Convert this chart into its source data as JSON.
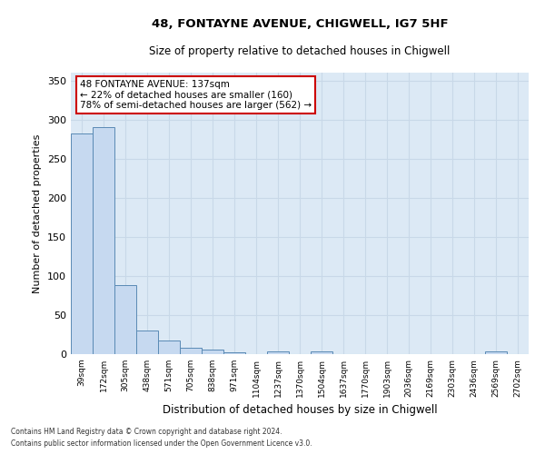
{
  "title1": "48, FONTAYNE AVENUE, CHIGWELL, IG7 5HF",
  "title2": "Size of property relative to detached houses in Chigwell",
  "xlabel": "Distribution of detached houses by size in Chigwell",
  "ylabel": "Number of detached properties",
  "categories": [
    "39sqm",
    "172sqm",
    "305sqm",
    "438sqm",
    "571sqm",
    "705sqm",
    "838sqm",
    "971sqm",
    "1104sqm",
    "1237sqm",
    "1370sqm",
    "1504sqm",
    "1637sqm",
    "1770sqm",
    "1903sqm",
    "2036sqm",
    "2169sqm",
    "2303sqm",
    "2436sqm",
    "2569sqm",
    "2702sqm"
  ],
  "values": [
    282,
    290,
    88,
    30,
    17,
    8,
    6,
    2,
    0,
    4,
    0,
    4,
    0,
    0,
    0,
    0,
    0,
    0,
    0,
    3,
    0
  ],
  "bar_color": "#c6d9f0",
  "bar_edge_color": "#5a8ab5",
  "property_label": "48 FONTAYNE AVENUE: 137sqm",
  "annotation_line1": "← 22% of detached houses are smaller (160)",
  "annotation_line2": "78% of semi-detached houses are larger (562) →",
  "annotation_box_color": "#ffffff",
  "annotation_box_edge": "#cc0000",
  "ylim": [
    0,
    360
  ],
  "yticks": [
    0,
    50,
    100,
    150,
    200,
    250,
    300,
    350
  ],
  "grid_color": "#c8d8e8",
  "bg_color": "#dce9f5",
  "footer1": "Contains HM Land Registry data © Crown copyright and database right 2024.",
  "footer2": "Contains public sector information licensed under the Open Government Licence v3.0."
}
